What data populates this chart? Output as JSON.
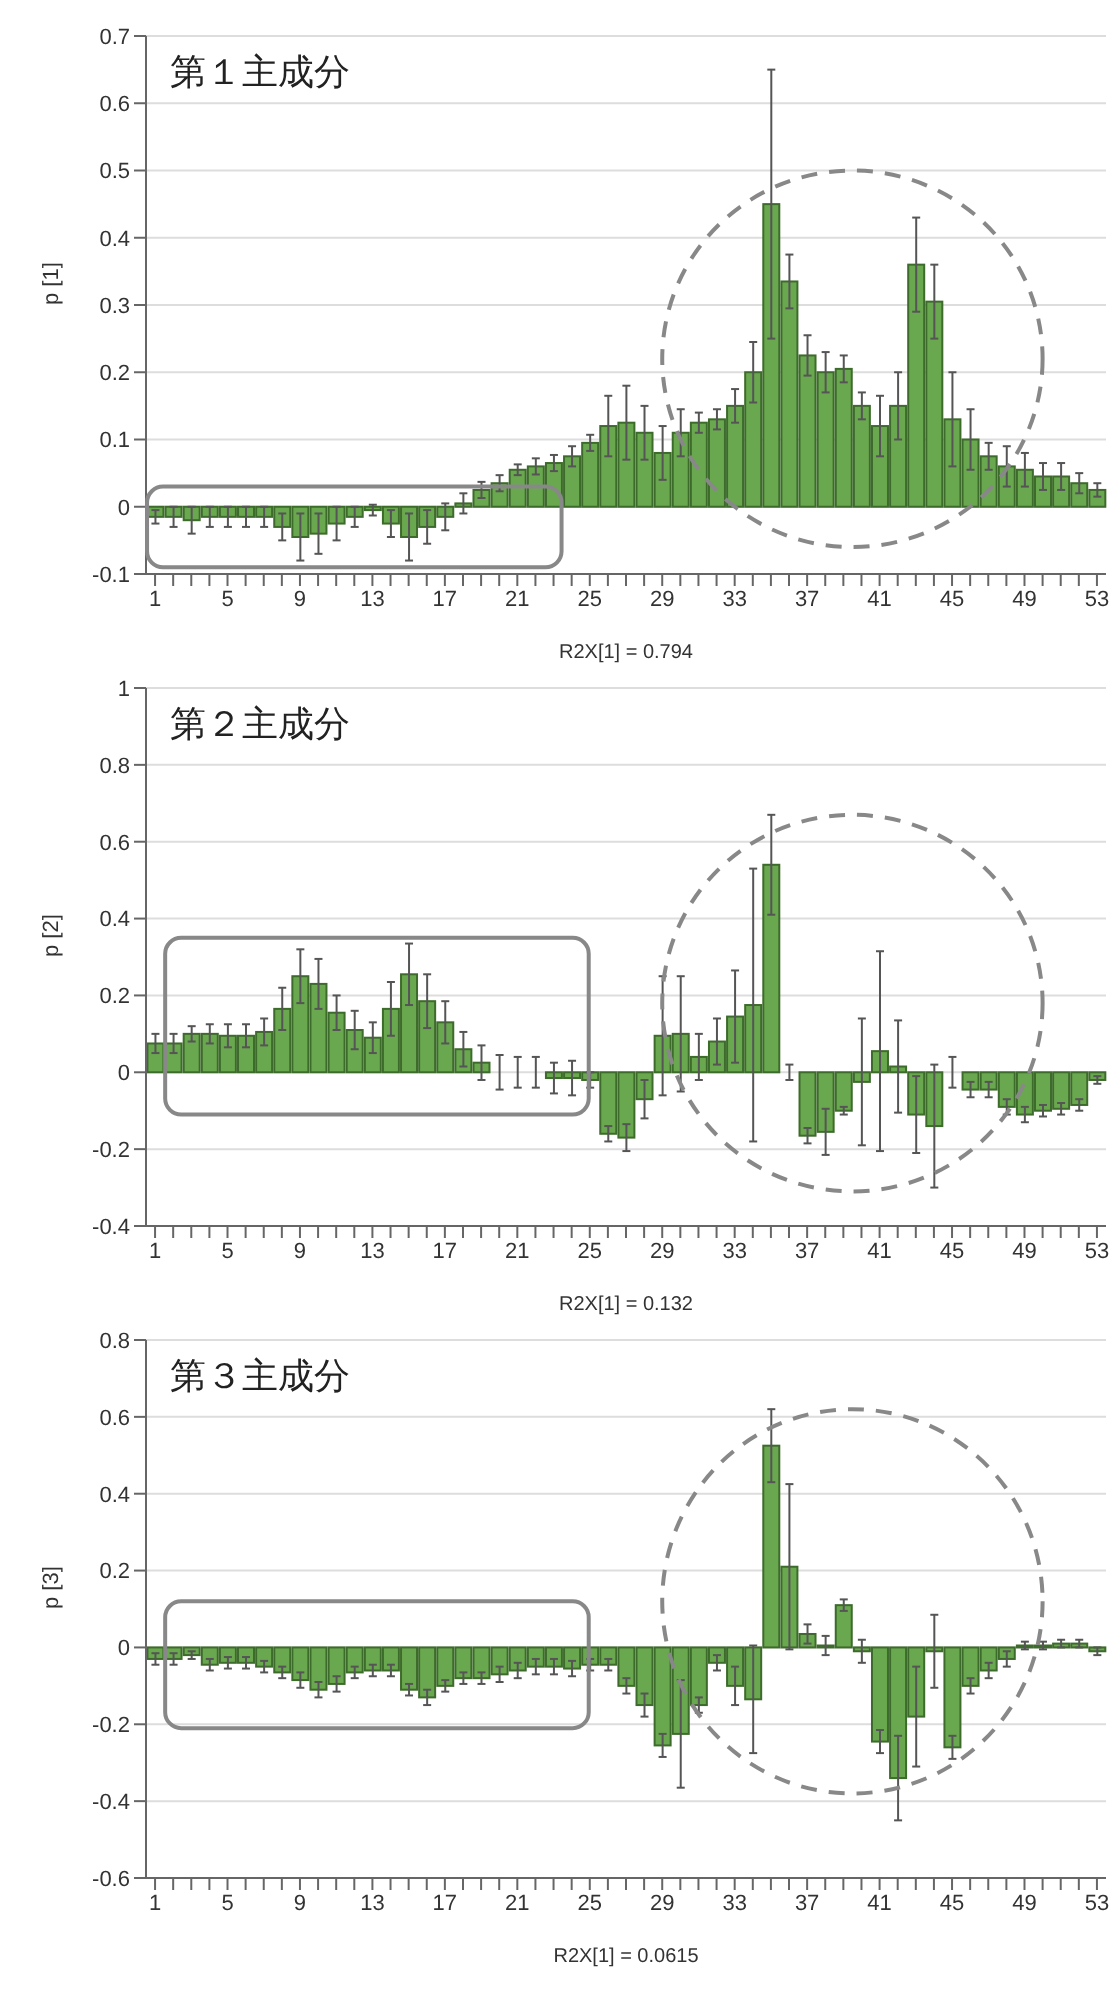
{
  "chart_data": [
    {
      "type": "bar",
      "title": "第１主成分",
      "xlabel": "R2X[1] = 0.794",
      "ylabel": "p [1]",
      "color": "#6aa84f",
      "grid": "y",
      "categories": [
        "1",
        null,
        null,
        null,
        "5",
        null,
        null,
        null,
        "9",
        null,
        null,
        null,
        "13",
        null,
        null,
        null,
        "17",
        null,
        null,
        null,
        "21",
        null,
        null,
        null,
        "25",
        null,
        null,
        null,
        "29",
        null,
        null,
        null,
        "33",
        null,
        null,
        null,
        "37",
        null,
        null,
        null,
        "41",
        null,
        null,
        null,
        "45",
        null,
        null,
        null,
        "49",
        null,
        null,
        null,
        "53"
      ],
      "values": [
        -0.015,
        -0.015,
        -0.02,
        -0.015,
        -0.015,
        -0.015,
        -0.015,
        -0.03,
        -0.045,
        -0.04,
        -0.025,
        -0.015,
        -0.005,
        -0.025,
        -0.045,
        -0.03,
        -0.015,
        0.005,
        0.025,
        0.035,
        0.055,
        0.06,
        0.065,
        0.075,
        0.095,
        0.12,
        0.125,
        0.11,
        0.08,
        0.11,
        0.125,
        0.13,
        0.15,
        0.2,
        0.45,
        0.335,
        0.225,
        0.2,
        0.205,
        0.15,
        0.12,
        0.15,
        0.36,
        0.305,
        0.13,
        0.1,
        0.075,
        0.06,
        0.055,
        0.045,
        0.045,
        0.035,
        0.025
      ],
      "errors": [
        0.01,
        0.015,
        0.02,
        0.015,
        0.015,
        0.015,
        0.015,
        0.02,
        0.035,
        0.03,
        0.025,
        0.015,
        0.008,
        0.02,
        0.035,
        0.025,
        0.02,
        0.015,
        0.012,
        0.012,
        0.008,
        0.012,
        0.012,
        0.015,
        0.012,
        0.045,
        0.055,
        0.04,
        0.04,
        0.035,
        0.015,
        0.015,
        0.025,
        0.045,
        0.2,
        0.04,
        0.03,
        0.03,
        0.02,
        0.02,
        0.045,
        0.05,
        0.07,
        0.055,
        0.07,
        0.045,
        0.02,
        0.03,
        0.025,
        0.02,
        0.02,
        0.015,
        0.01
      ],
      "ylim": [
        -0.1,
        0.7
      ],
      "yticks": [
        -0.1,
        0,
        0.1,
        0.2,
        0.3,
        0.4,
        0.5,
        0.6,
        0.7
      ]
    },
    {
      "type": "bar",
      "title": "第２主成分",
      "xlabel": "R2X[1] = 0.132",
      "ylabel": "p [2]",
      "color": "#6aa84f",
      "grid": "y",
      "categories": [
        "1",
        null,
        null,
        null,
        "5",
        null,
        null,
        null,
        "9",
        null,
        null,
        null,
        "13",
        null,
        null,
        null,
        "17",
        null,
        null,
        null,
        "21",
        null,
        null,
        null,
        "25",
        null,
        null,
        null,
        "29",
        null,
        null,
        null,
        "33",
        null,
        null,
        null,
        "37",
        null,
        null,
        null,
        "41",
        null,
        null,
        null,
        "45",
        null,
        null,
        null,
        "49",
        null,
        null,
        null,
        "53"
      ],
      "values": [
        0.075,
        0.075,
        0.1,
        0.1,
        0.095,
        0.095,
        0.105,
        0.165,
        0.25,
        0.23,
        0.155,
        0.11,
        0.09,
        0.165,
        0.255,
        0.185,
        0.13,
        0.06,
        0.025,
        0,
        0,
        0,
        -0.015,
        -0.015,
        -0.02,
        -0.16,
        -0.17,
        -0.07,
        0.095,
        0.1,
        0.04,
        0.08,
        0.145,
        0.175,
        0.54,
        0,
        -0.165,
        -0.155,
        -0.1,
        -0.025,
        0.055,
        0.015,
        -0.11,
        -0.14,
        0,
        -0.045,
        -0.045,
        -0.09,
        -0.11,
        -0.1,
        -0.095,
        -0.085,
        -0.02
      ],
      "errors": [
        0.025,
        0.025,
        0.02,
        0.025,
        0.03,
        0.03,
        0.035,
        0.055,
        0.07,
        0.065,
        0.045,
        0.05,
        0.04,
        0.07,
        0.08,
        0.07,
        0.055,
        0.045,
        0.045,
        0.045,
        0.04,
        0.04,
        0.04,
        0.045,
        0.02,
        0.02,
        0.035,
        0.05,
        0.155,
        0.15,
        0.06,
        0.06,
        0.12,
        0.355,
        0.13,
        0.02,
        0.02,
        0.06,
        0.01,
        0.165,
        0.26,
        0.12,
        0.1,
        0.16,
        0.04,
        0.02,
        0.02,
        0.02,
        0.02,
        0.015,
        0.015,
        0.015,
        0.01
      ],
      "ylim": [
        -0.4,
        1
      ],
      "yticks": [
        -0.4,
        -0.2,
        0,
        0.2,
        0.4,
        0.6,
        0.8,
        1
      ]
    },
    {
      "type": "bar",
      "title": "第３主成分",
      "xlabel": "R2X[1] = 0.0615",
      "ylabel": "p [3]",
      "color": "#6aa84f",
      "grid": "y",
      "categories": [
        "1",
        null,
        null,
        null,
        "5",
        null,
        null,
        null,
        "9",
        null,
        null,
        null,
        "13",
        null,
        null,
        null,
        "17",
        null,
        null,
        null,
        "21",
        null,
        null,
        null,
        "25",
        null,
        null,
        null,
        "29",
        null,
        null,
        null,
        "33",
        null,
        null,
        null,
        "37",
        null,
        null,
        null,
        "41",
        null,
        null,
        null,
        "45",
        null,
        null,
        null,
        "49",
        null,
        null,
        null,
        "53"
      ],
      "values": [
        -0.03,
        -0.03,
        -0.02,
        -0.045,
        -0.04,
        -0.04,
        -0.05,
        -0.065,
        -0.085,
        -0.11,
        -0.095,
        -0.065,
        -0.06,
        -0.06,
        -0.11,
        -0.13,
        -0.1,
        -0.08,
        -0.08,
        -0.07,
        -0.06,
        -0.05,
        -0.05,
        -0.055,
        -0.045,
        -0.045,
        -0.1,
        -0.15,
        -0.255,
        -0.225,
        -0.15,
        -0.04,
        -0.1,
        -0.135,
        0.525,
        0.21,
        0.035,
        0.005,
        0.11,
        -0.01,
        -0.245,
        -0.34,
        -0.18,
        -0.01,
        -0.26,
        -0.1,
        -0.06,
        -0.03,
        0.005,
        0.005,
        0.01,
        0.01,
        -0.01
      ],
      "errors": [
        0.015,
        0.015,
        0.01,
        0.015,
        0.015,
        0.015,
        0.015,
        0.015,
        0.02,
        0.02,
        0.02,
        0.015,
        0.015,
        0.015,
        0.015,
        0.02,
        0.015,
        0.015,
        0.015,
        0.02,
        0.02,
        0.02,
        0.02,
        0.02,
        0.015,
        0.015,
        0.02,
        0.03,
        0.03,
        0.14,
        0.02,
        0.02,
        0.05,
        0.14,
        0.095,
        0.215,
        0.025,
        0.025,
        0.015,
        0.03,
        0.03,
        0.11,
        0.13,
        0.095,
        0.03,
        0.02,
        0.02,
        0.02,
        0.01,
        0.01,
        0.01,
        0.01,
        0.01
      ],
      "ylim": [
        -0.6,
        0.8
      ],
      "yticks": [
        -0.6,
        -0.4,
        -0.2,
        0,
        0.2,
        0.4,
        0.6,
        0.8
      ]
    }
  ]
}
